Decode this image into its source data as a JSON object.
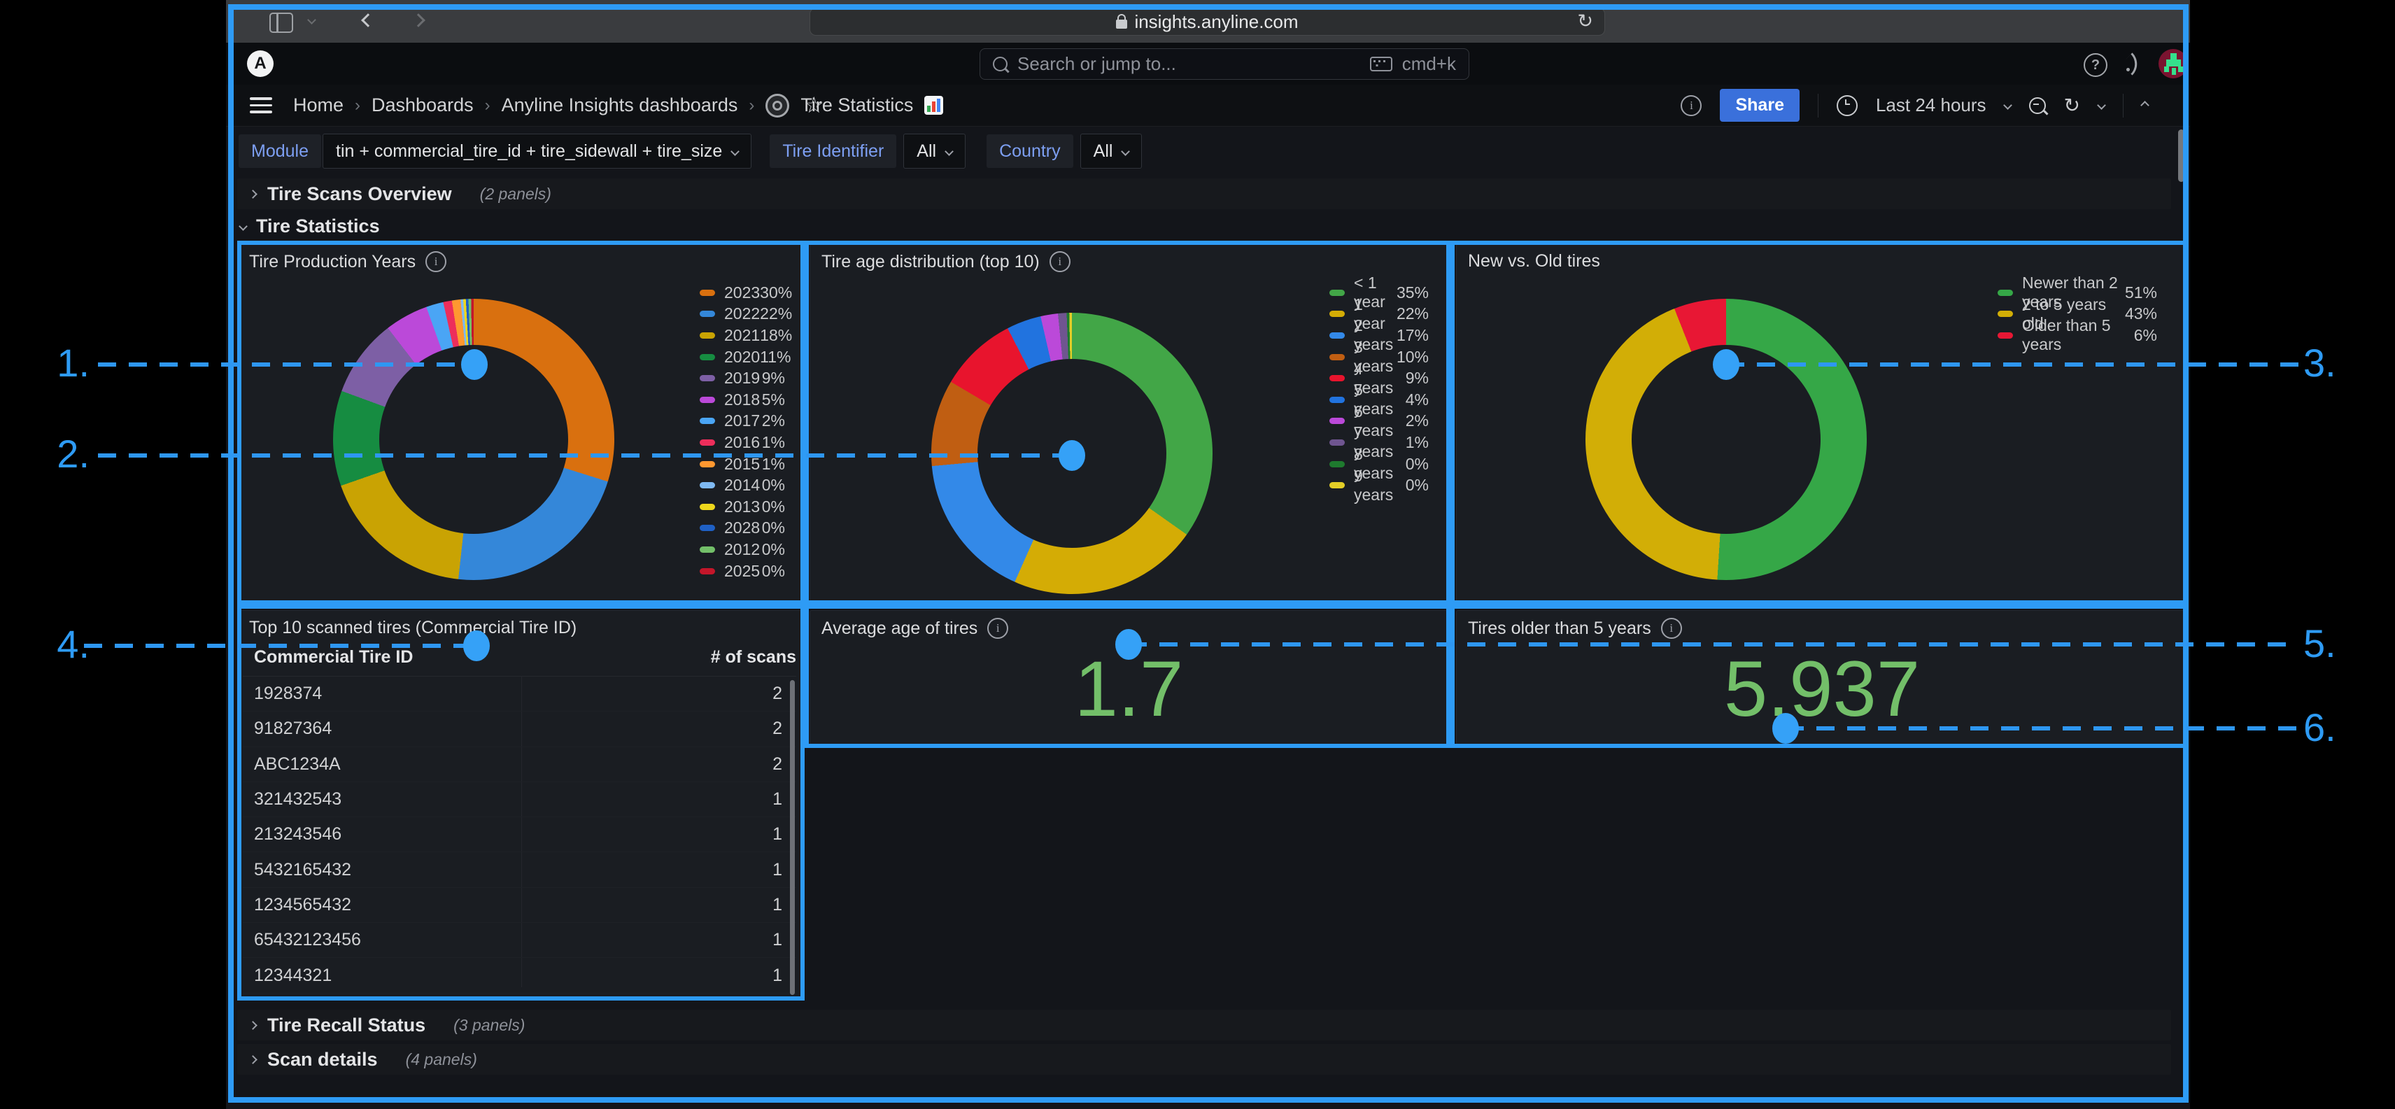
{
  "browser": {
    "url": "insights.anyline.com"
  },
  "nav": {
    "search_placeholder": "Search or jump to...",
    "search_shortcut": "cmd+k",
    "logo_letter": "A"
  },
  "breadcrumb": {
    "items": [
      "Home",
      "Dashboards",
      "Anyline Insights dashboards",
      "Tire Statistics"
    ]
  },
  "toolbar": {
    "share_label": "Share",
    "time_range": "Last 24 hours"
  },
  "filters": [
    {
      "label": "Module",
      "value": "tin + commercial_tire_id + tire_sidewall + tire_size"
    },
    {
      "label": "Tire Identifier",
      "value": "All"
    },
    {
      "label": "Country",
      "value": "All"
    }
  ],
  "rows": {
    "overview": {
      "title": "Tire Scans Overview",
      "count": "(2 panels)"
    },
    "statistics": {
      "title": "Tire Statistics"
    },
    "recall": {
      "title": "Tire Recall Status",
      "count": "(3 panels)"
    },
    "scan": {
      "title": "Scan details",
      "count": "(4 panels)"
    }
  },
  "chart_data": [
    {
      "type": "pie",
      "title": "Tire Production Years",
      "has_info": true,
      "legend_position": "right",
      "slices": [
        {
          "label": "2023",
          "pct": 30,
          "color": "#D9700F"
        },
        {
          "label": "2022",
          "pct": 22,
          "color": "#3487D9"
        },
        {
          "label": "2021",
          "pct": 18,
          "color": "#C9A303"
        },
        {
          "label": "2020",
          "pct": 11,
          "color": "#168C41"
        },
        {
          "label": "2019",
          "pct": 9,
          "color": "#7D5FA5"
        },
        {
          "label": "2018",
          "pct": 5,
          "color": "#BB49D9"
        },
        {
          "label": "2017",
          "pct": 2,
          "color": "#4AA5F5"
        },
        {
          "label": "2016",
          "pct": 1,
          "color": "#ED2E5B"
        },
        {
          "label": "2015",
          "pct": 1,
          "color": "#FF9830"
        },
        {
          "label": "2014",
          "pct": 0,
          "color": "#7EB9F2"
        },
        {
          "label": "2013",
          "pct": 0,
          "color": "#EED71C"
        },
        {
          "label": "2028",
          "pct": 0,
          "color": "#1F60C4"
        },
        {
          "label": "2012",
          "pct": 0,
          "color": "#73BF69"
        },
        {
          "label": "2025",
          "pct": 0,
          "color": "#C4162A"
        }
      ]
    },
    {
      "type": "pie",
      "title": "Tire age distribution (top 10)",
      "has_info": true,
      "legend_position": "right",
      "slices": [
        {
          "label": "< 1 year",
          "pct": 35,
          "color": "#42A647"
        },
        {
          "label": "1 year",
          "pct": 22,
          "color": "#D4AC05"
        },
        {
          "label": "2 years",
          "pct": 17,
          "color": "#3389E8"
        },
        {
          "label": "3 years",
          "pct": 10,
          "color": "#C05E12"
        },
        {
          "label": "4 years",
          "pct": 9,
          "color": "#E8142D"
        },
        {
          "label": "5 years",
          "pct": 4,
          "color": "#2173DF"
        },
        {
          "label": "6 years",
          "pct": 2,
          "color": "#BB49D9"
        },
        {
          "label": "7 years",
          "pct": 1,
          "color": "#6F5590"
        },
        {
          "label": "8 years",
          "pct": 0,
          "color": "#1E7A2E"
        },
        {
          "label": "9 years",
          "pct": 0,
          "color": "#E3CE27"
        }
      ]
    },
    {
      "type": "pie",
      "title": "New vs. Old tires",
      "has_info": false,
      "legend_position": "right",
      "slices": [
        {
          "label": "Newer than 2 years",
          "pct": 51,
          "color": "#35A747"
        },
        {
          "label": "2 to 5 years old",
          "pct": 43,
          "color": "#D2AE06"
        },
        {
          "label": "Older than 5 years",
          "pct": 6,
          "color": "#E81734"
        }
      ]
    },
    {
      "type": "table",
      "title": "Top 10 scanned tires (Commercial Tire ID)",
      "columns": [
        "Commercial Tire ID",
        "# of scans"
      ],
      "rows": [
        [
          "1928374",
          "2"
        ],
        [
          "91827364",
          "2"
        ],
        [
          "ABC1234A",
          "2"
        ],
        [
          "321432543",
          "1"
        ],
        [
          "213243546",
          "1"
        ],
        [
          "5432165432",
          "1"
        ],
        [
          "1234565432",
          "1"
        ],
        [
          "65432123456",
          "1"
        ],
        [
          "12344321",
          "1"
        ]
      ]
    },
    {
      "type": "stat",
      "title": "Average age of tires",
      "has_info": true,
      "value": "1.7",
      "color": "#73BF69"
    },
    {
      "type": "stat",
      "title": "Tires older than 5 years",
      "has_info": true,
      "value": "5,937",
      "color": "#73BF69"
    }
  ],
  "annotations": {
    "color": "#2E9BF5",
    "labels": [
      "1.",
      "2.",
      "3.",
      "4.",
      "5.",
      "6."
    ]
  }
}
